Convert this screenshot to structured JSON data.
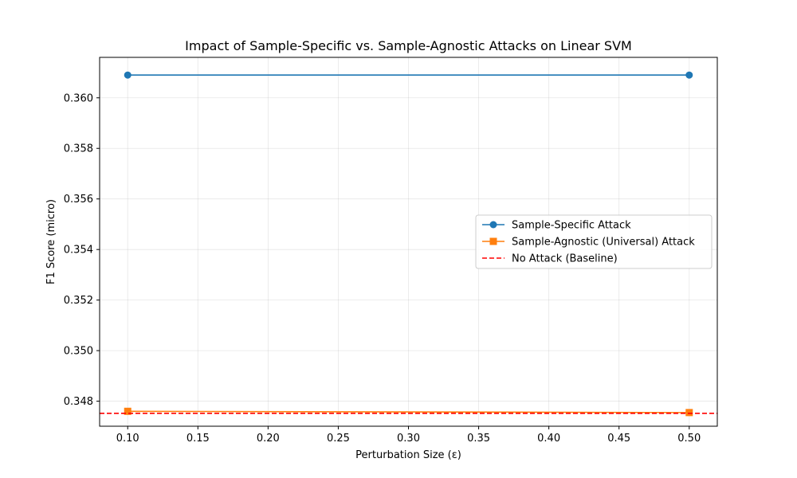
{
  "chart_data": {
    "type": "line",
    "title": "Impact of Sample-Specific vs. Sample-Agnostic Attacks on Linear SVM",
    "xlabel": "Perturbation Size (ε)",
    "ylabel": "F1 Score (micro)",
    "xlim": [
      0.08,
      0.52
    ],
    "ylim": [
      0.34701,
      0.3616
    ],
    "x_ticks": [
      0.1,
      0.15,
      0.2,
      0.25,
      0.3,
      0.35,
      0.4,
      0.45,
      0.5
    ],
    "x_tick_labels": [
      "0.10",
      "0.15",
      "0.20",
      "0.25",
      "0.30",
      "0.35",
      "0.40",
      "0.45",
      "0.50"
    ],
    "y_ticks": [
      0.348,
      0.35,
      0.352,
      0.354,
      0.356,
      0.358,
      0.36
    ],
    "y_tick_labels": [
      "0.348",
      "0.350",
      "0.352",
      "0.354",
      "0.356",
      "0.358",
      "0.360"
    ],
    "grid": true,
    "legend_position": "center-right",
    "series": [
      {
        "name": "Sample-Specific Attack",
        "color": "#1f77b4",
        "marker": "circle",
        "x": [
          0.1,
          0.5
        ],
        "y": [
          0.3609,
          0.3609
        ]
      },
      {
        "name": "Sample-Agnostic (Universal) Attack",
        "color": "#ff7f0e",
        "marker": "square",
        "x": [
          0.1,
          0.5
        ],
        "y": [
          0.3476,
          0.34755
        ]
      }
    ],
    "baseline": {
      "name": "No Attack (Baseline)",
      "color": "#ff0000",
      "style": "dashed",
      "y": 0.34752
    }
  }
}
